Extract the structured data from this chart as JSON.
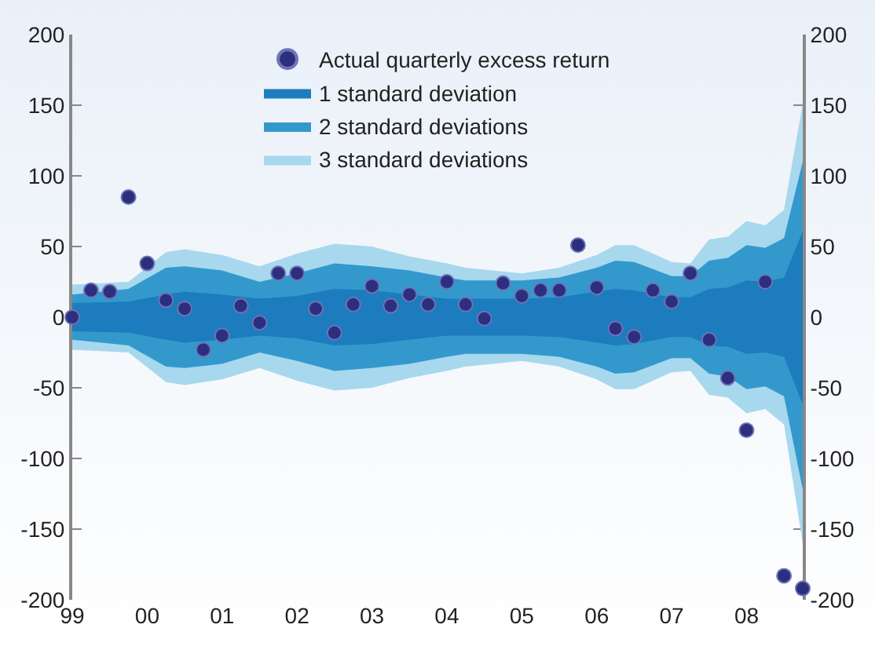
{
  "chart_data": {
    "type": "scatter",
    "xlim": [
      1999,
      2008.75
    ],
    "xticks": [
      {
        "value": 1999,
        "label": "99"
      },
      {
        "value": 2000,
        "label": "00"
      },
      {
        "value": 2001,
        "label": "01"
      },
      {
        "value": 2002,
        "label": "02"
      },
      {
        "value": 2003,
        "label": "03"
      },
      {
        "value": 2004,
        "label": "04"
      },
      {
        "value": 2005,
        "label": "05"
      },
      {
        "value": 2006,
        "label": "06"
      },
      {
        "value": 2007,
        "label": "07"
      },
      {
        "value": 2008,
        "label": "08"
      }
    ],
    "ylim": [
      -200,
      200
    ],
    "yticks": [
      -200,
      -150,
      -100,
      -50,
      0,
      50,
      100,
      150,
      200
    ],
    "y2lim": [
      -200,
      200
    ],
    "y2ticks": [
      -200,
      -150,
      -100,
      -50,
      0,
      50,
      100,
      150,
      200
    ],
    "grid": false,
    "legend": "top",
    "series": [
      {
        "name": "3 standard deviations",
        "type": "area",
        "color": "#a8d8ee",
        "x": [
          1999,
          1999.75,
          2000.25,
          2000.5,
          2001,
          2001.5,
          2002,
          2002.5,
          2003,
          2003.5,
          2004,
          2004.25,
          2005,
          2005.5,
          2006,
          2006.25,
          2006.5,
          2007,
          2007.25,
          2007.5,
          2007.75,
          2008,
          2008.25,
          2008.5,
          2008.75
        ],
        "values": [
          23,
          25,
          46,
          48,
          44,
          36,
          45,
          52,
          50,
          43,
          38,
          35,
          31,
          35,
          44,
          51,
          51,
          39,
          38,
          55,
          57,
          68,
          65,
          76,
          151
        ]
      },
      {
        "type": "area",
        "color": "#a8d8ee",
        "x": [
          1999,
          1999.75,
          2000.25,
          2000.5,
          2001,
          2001.5,
          2002,
          2002.5,
          2003,
          2003.5,
          2004,
          2004.25,
          2005,
          2005.5,
          2006,
          2006.25,
          2006.5,
          2007,
          2007.25,
          2007.5,
          2007.75,
          2008,
          2008.25,
          2008.5,
          2008.75
        ],
        "values": [
          -23,
          -25,
          -46,
          -48,
          -44,
          -36,
          -45,
          -52,
          -50,
          -43,
          -38,
          -35,
          -31,
          -35,
          -44,
          -51,
          -51,
          -39,
          -38,
          -55,
          -57,
          -68,
          -65,
          -76,
          -160
        ]
      },
      {
        "name": "2 standard deviations",
        "type": "area",
        "color": "#3399cc",
        "x": [
          1999,
          1999.75,
          2000.25,
          2000.5,
          2001,
          2001.5,
          2002,
          2002.5,
          2003,
          2003.5,
          2004,
          2004.25,
          2005,
          2005.5,
          2006,
          2006.25,
          2006.5,
          2007,
          2007.25,
          2007.5,
          2007.75,
          2008,
          2008.25,
          2008.5,
          2008.75
        ],
        "values": [
          16,
          20,
          35,
          36,
          33,
          25,
          31,
          38,
          36,
          33,
          28,
          26,
          26,
          28,
          35,
          40,
          39,
          29,
          29,
          40,
          42,
          51,
          49,
          56,
          110
        ]
      },
      {
        "type": "area",
        "color": "#3399cc",
        "x": [
          1999,
          1999.75,
          2000.25,
          2000.5,
          2001,
          2001.5,
          2002,
          2002.5,
          2003,
          2003.5,
          2004,
          2004.25,
          2005,
          2005.5,
          2006,
          2006.25,
          2006.5,
          2007,
          2007.25,
          2007.5,
          2007.75,
          2008,
          2008.25,
          2008.5,
          2008.75
        ],
        "values": [
          -16,
          -20,
          -35,
          -36,
          -33,
          -25,
          -31,
          -38,
          -36,
          -33,
          -28,
          -26,
          -26,
          -28,
          -35,
          -40,
          -39,
          -29,
          -29,
          -40,
          -42,
          -51,
          -49,
          -56,
          -122
        ]
      },
      {
        "name": "1 standard deviation",
        "type": "area",
        "color": "#1c7cbd",
        "x": [
          1999,
          1999.75,
          2000.25,
          2000.5,
          2001,
          2001.5,
          2002,
          2002.5,
          2003,
          2003.5,
          2004,
          2004.25,
          2005,
          2005.5,
          2006,
          2006.25,
          2006.5,
          2007,
          2007.25,
          2007.5,
          2007.75,
          2008,
          2008.25,
          2008.5,
          2008.75
        ],
        "values": [
          10,
          11,
          16,
          18,
          16,
          13,
          15,
          20,
          19,
          16,
          13,
          13,
          13,
          14,
          18,
          20,
          19,
          14,
          14,
          20,
          21,
          26,
          25,
          28,
          61
        ]
      },
      {
        "type": "area",
        "color": "#1c7cbd",
        "x": [
          1999,
          1999.75,
          2000.25,
          2000.5,
          2001,
          2001.5,
          2002,
          2002.5,
          2003,
          2003.5,
          2004,
          2004.25,
          2005,
          2005.5,
          2006,
          2006.25,
          2006.5,
          2007,
          2007.25,
          2007.5,
          2007.75,
          2008,
          2008.25,
          2008.5,
          2008.75
        ],
        "values": [
          -10,
          -11,
          -16,
          -18,
          -16,
          -13,
          -15,
          -20,
          -19,
          -16,
          -13,
          -13,
          -13,
          -14,
          -18,
          -20,
          -19,
          -14,
          -14,
          -20,
          -21,
          -26,
          -25,
          -28,
          -62
        ]
      },
      {
        "name": "Actual quarterly excess return",
        "marker": "circle",
        "color": "#2b2f7e",
        "x": [
          1999,
          1999.25,
          1999.5,
          1999.75,
          2000,
          2000.25,
          2000.5,
          2000.75,
          2001,
          2001.25,
          2001.5,
          2001.75,
          2002,
          2002.25,
          2002.5,
          2002.75,
          2003,
          2003.25,
          2003.5,
          2003.75,
          2004,
          2004.25,
          2004.5,
          2004.75,
          2005,
          2005.25,
          2005.5,
          2005.75,
          2006,
          2006.25,
          2006.5,
          2006.75,
          2007,
          2007.25,
          2007.5,
          2007.75,
          2008,
          2008.25,
          2008.5,
          2008.75
        ],
        "values": [
          0,
          19,
          18,
          85,
          38,
          12,
          6,
          -23,
          -13,
          8,
          -4,
          31,
          31,
          6,
          -11,
          9,
          22,
          8,
          16,
          9,
          25,
          9,
          -1,
          24,
          15,
          19,
          19,
          51,
          21,
          -8,
          -14,
          19,
          11,
          31,
          -16,
          -43,
          -80,
          25,
          -183,
          -192
        ]
      }
    ]
  }
}
